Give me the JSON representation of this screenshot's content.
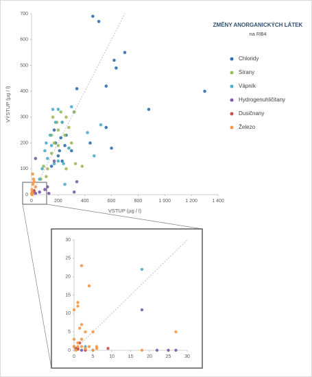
{
  "chart_data": [
    {
      "type": "scatter",
      "title": "ZMĚNY ANORGANICKÝCH LÁTEK",
      "subtitle": "na RB4",
      "x_label": "VSTUP (µg / l)",
      "y_label": "VÝSTUP (µg / l)",
      "xlim": [
        0,
        1400
      ],
      "ylim": [
        0,
        700
      ],
      "xticks": [
        0,
        200,
        400,
        600,
        800,
        {
          "value": 1000,
          "label": "1 000"
        },
        {
          "value": 1200,
          "label": "1 200"
        },
        {
          "value": 1400,
          "label": "1 400"
        }
      ],
      "yticks": [
        0,
        100,
        200,
        300,
        400,
        500,
        600,
        700
      ],
      "legend": "right",
      "series": [
        {
          "name": "Chloridy",
          "color": "#2e6fae",
          "x": [
            460,
            505,
            700,
            620,
            635,
            340,
            560,
            880,
            1300,
            320,
            560,
            440,
            600,
            300,
            250,
            200,
            180,
            220,
            260,
            170,
            210,
            150,
            230
          ],
          "values": [
            690,
            670,
            550,
            520,
            490,
            410,
            420,
            330,
            400,
            320,
            260,
            200,
            180,
            170,
            190,
            150,
            200,
            220,
            230,
            250,
            170,
            110,
            130
          ]
        },
        {
          "name": "Sírany",
          "color": "#9bbb59",
          "x": [
            120,
            150,
            170,
            200,
            230,
            260,
            280,
            300,
            250,
            320,
            220,
            190,
            380,
            330,
            260,
            160,
            200,
            280,
            90,
            70,
            110,
            150
          ],
          "values": [
            100,
            160,
            200,
            250,
            280,
            300,
            260,
            200,
            230,
            320,
            320,
            280,
            110,
            120,
            100,
            300,
            190,
            180,
            110,
            60,
            70,
            230
          ]
        },
        {
          "name": "Vápník",
          "color": "#4bacc6",
          "x": [
            160,
            200,
            180,
            140,
            150,
            120,
            100,
            170,
            300,
            420,
            520,
            470,
            280,
            80,
            60,
            230,
            200,
            240,
            110,
            250
          ],
          "values": [
            330,
            330,
            280,
            230,
            190,
            140,
            170,
            120,
            340,
            240,
            270,
            150,
            180,
            100,
            60,
            280,
            130,
            120,
            200,
            40
          ]
        },
        {
          "name": "Hydrogenuhličitany",
          "color": "#7a5aa6",
          "x": [
            30,
            170,
            320,
            120,
            130,
            100,
            60,
            30,
            340
          ],
          "values": [
            140,
            130,
            10,
            30,
            5,
            20,
            10,
            5,
            50
          ]
        },
        {
          "name": "Dusičnany",
          "color": "#c0504d",
          "x": [
            10,
            5,
            20
          ],
          "values": [
            10,
            5,
            15
          ]
        },
        {
          "name": "Železo",
          "color": "#f79646",
          "x": [
            2,
            5,
            3,
            10,
            15,
            8,
            20,
            30,
            5,
            1
          ],
          "values": [
            2,
            10,
            20,
            40,
            60,
            80,
            50,
            30,
            0,
            5
          ]
        }
      ]
    },
    {
      "type": "scatter",
      "xlim": [
        0,
        30
      ],
      "ylim": [
        0,
        30
      ],
      "xticks": [
        0,
        5,
        10,
        15,
        20,
        25,
        30
      ],
      "yticks": [
        0,
        5,
        10,
        15,
        20,
        25,
        30
      ],
      "series": [
        {
          "color": "#4bacc6",
          "x": [
            18,
            0,
            5,
            3
          ],
          "values": [
            22,
            1,
            0,
            1
          ]
        },
        {
          "color": "#7a5aa6",
          "x": [
            18,
            22,
            27,
            25,
            1,
            2
          ],
          "values": [
            11,
            0,
            0,
            0,
            0.5,
            0
          ]
        },
        {
          "color": "#c0504d",
          "x": [
            9,
            1,
            3,
            0.5,
            1.5
          ],
          "values": [
            0.5,
            0.3,
            0,
            0.5,
            2
          ]
        },
        {
          "color": "#f79646",
          "x": [
            2,
            4,
            1,
            0,
            1,
            2,
            1.5,
            3,
            5,
            27,
            18,
            0,
            1,
            2,
            3,
            4,
            5,
            6,
            1,
            0.5,
            0,
            2,
            6
          ],
          "values": [
            23,
            17.5,
            13,
            11,
            12,
            7,
            6,
            5,
            5,
            5,
            0,
            3,
            2,
            1,
            0.5,
            1,
            0,
            0.5,
            1,
            0,
            1,
            3,
            1
          ]
        }
      ]
    }
  ]
}
